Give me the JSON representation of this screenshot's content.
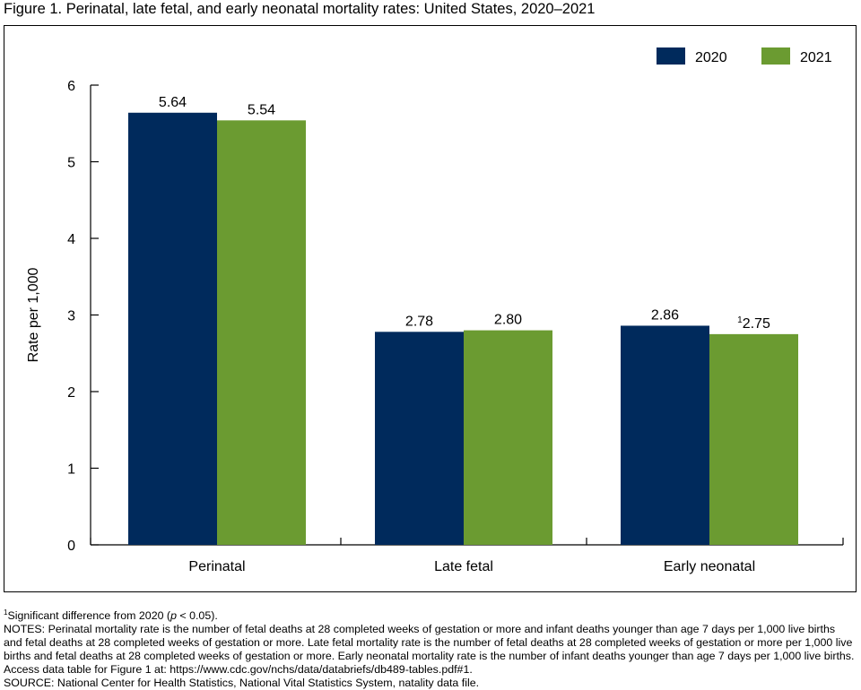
{
  "figure": {
    "title": "Figure 1. Perinatal, late fetal, and early neonatal mortality rates: United States, 2020–2021"
  },
  "chart_data": {
    "type": "bar",
    "categories": [
      "Perinatal",
      "Late fetal",
      "Early neonatal"
    ],
    "series": [
      {
        "name": "2020",
        "color": "#002a5c",
        "values": [
          5.64,
          2.78,
          2.86
        ],
        "labels": [
          "5.64",
          "2.78",
          "2.86"
        ],
        "markers": [
          "",
          "",
          ""
        ]
      },
      {
        "name": "2021",
        "color": "#6b9b31",
        "values": [
          5.54,
          2.8,
          2.75
        ],
        "labels": [
          "5.54",
          "2.80",
          "2.75"
        ],
        "markers": [
          "",
          "",
          "1"
        ]
      }
    ],
    "ylabel": "Rate per 1,000",
    "xlabel": "",
    "ylim": [
      0,
      6
    ],
    "yticks": [
      0,
      1,
      2,
      3,
      4,
      5,
      6
    ],
    "grid": false,
    "legend": "top-right"
  },
  "notes": {
    "footnote_marker": "1",
    "footnote_text_before": "Significant difference from 2020 (",
    "footnote_p": "p",
    "footnote_text_after": " < 0.05).",
    "notes": "NOTES: Perinatal mortality rate is the number of fetal deaths at 28 completed weeks of gestation or more and infant deaths younger than age 7 days per 1,000 live births and fetal deaths at 28 completed weeks of gestation or more. Late fetal mortality rate is the number of fetal deaths at 28 completed weeks of gestation or more per 1,000 live births and fetal deaths at 28 completed weeks of gestation or more. Early neonatal mortality rate is the number of infant deaths younger than age 7 days per 1,000 live births. Access data table for Figure 1 at: https://www.cdc.gov/nchs/data/databriefs/db489-tables.pdf#1.",
    "source": "SOURCE: National Center for Health Statistics, National Vital Statistics System, natality data file."
  }
}
